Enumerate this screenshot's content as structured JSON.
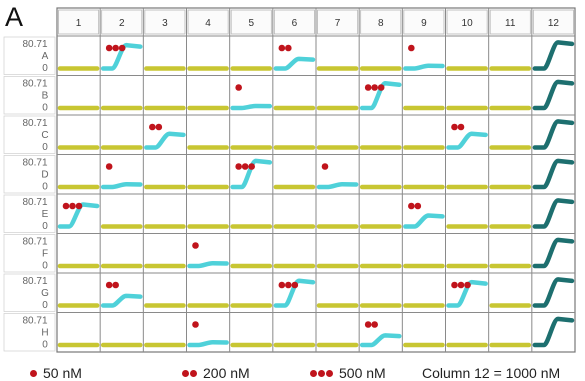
{
  "panel_label": "A",
  "chart_data": {
    "type": "plate-sensorgram-grid",
    "columns": [
      "1",
      "2",
      "3",
      "4",
      "5",
      "6",
      "7",
      "8",
      "9",
      "10",
      "11",
      "12"
    ],
    "rows": [
      "A",
      "B",
      "C",
      "D",
      "E",
      "F",
      "G",
      "H"
    ],
    "y_max_label": "80.71",
    "y_min_label": "0",
    "colors": {
      "flat": "#c8c632",
      "binding": "#4fd1d9",
      "column12": "#1d6f6f",
      "marker": "#c0141c",
      "grid": "#8a8a8a"
    },
    "concentrations": {
      "1": "50 nM",
      "2": "200 nM",
      "3": "500 nM"
    },
    "wells": [
      {
        "row": "A",
        "col": 2,
        "dots": 3,
        "response": 0.85
      },
      {
        "row": "A",
        "col": 6,
        "dots": 2,
        "response": 0.35
      },
      {
        "row": "A",
        "col": 9,
        "dots": 1,
        "response": 0.1
      },
      {
        "row": "B",
        "col": 5,
        "dots": 1,
        "response": 0.05
      },
      {
        "row": "B",
        "col": 8,
        "dots": 3,
        "response": 0.9
      },
      {
        "row": "C",
        "col": 3,
        "dots": 2,
        "response": 0.5
      },
      {
        "row": "C",
        "col": 10,
        "dots": 2,
        "response": 0.5
      },
      {
        "row": "D",
        "col": 2,
        "dots": 1,
        "response": 0.1
      },
      {
        "row": "D",
        "col": 5,
        "dots": 3,
        "response": 0.95
      },
      {
        "row": "D",
        "col": 7,
        "dots": 1,
        "response": 0.1
      },
      {
        "row": "E",
        "col": 1,
        "dots": 3,
        "response": 0.8
      },
      {
        "row": "E",
        "col": 9,
        "dots": 2,
        "response": 0.4
      },
      {
        "row": "F",
        "col": 4,
        "dots": 1,
        "response": 0.1
      },
      {
        "row": "G",
        "col": 2,
        "dots": 2,
        "response": 0.35
      },
      {
        "row": "G",
        "col": 6,
        "dots": 3,
        "response": 0.9
      },
      {
        "row": "G",
        "col": 10,
        "dots": 3,
        "response": 0.85
      },
      {
        "row": "H",
        "col": 4,
        "dots": 1,
        "response": 0.1
      },
      {
        "row": "H",
        "col": 8,
        "dots": 2,
        "response": 0.35
      }
    ],
    "column12_response": 0.95
  },
  "legend": {
    "items": [
      "50 nM",
      "200 nM",
      "500 nM"
    ],
    "column_note": "Column 12 = 1000 nM"
  }
}
